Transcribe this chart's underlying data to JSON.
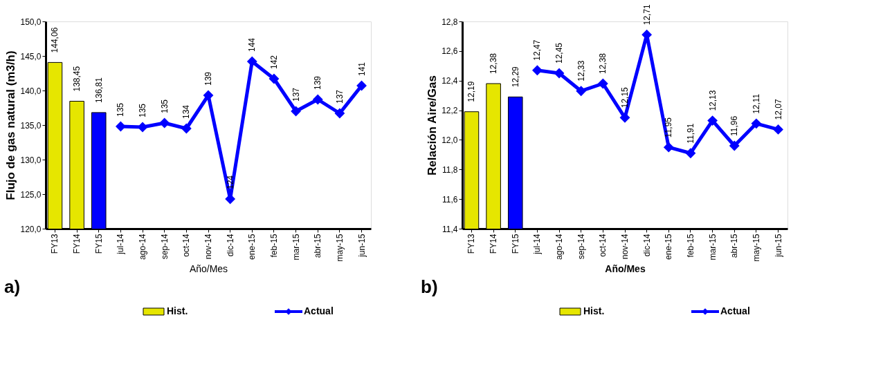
{
  "chart_data": [
    {
      "type": "bar",
      "categories": [
        "FY13",
        "FY14",
        "FY15",
        "jul-14",
        "ago-14",
        "sep-14",
        "oct-14",
        "nov-14",
        "dic-14",
        "ene-15",
        "feb-15",
        "mar-15",
        "abr-15",
        "may-15",
        "jun-15"
      ],
      "xlabel": "Año/Mes",
      "ylabel": "Flujo de gas natural (m3/h)",
      "annotations": [
        "a)"
      ],
      "ylim": [
        120,
        150
      ],
      "yticks": [
        {
          "value": 120,
          "label": "120,0"
        },
        {
          "value": 125,
          "label": "125,0"
        },
        {
          "value": 130,
          "label": "130,0"
        },
        {
          "value": 135,
          "label": "135,0"
        },
        {
          "value": 140,
          "label": "140,0"
        },
        {
          "value": 145,
          "label": "145,0"
        },
        {
          "value": 150,
          "label": "150,0"
        }
      ],
      "grid": false,
      "legend": "bottom",
      "marker": "diamond",
      "line_style": "solid",
      "series": [
        {
          "name": "Hist.",
          "color": "#e6e600",
          "colors": [
            "#e6e600",
            "#e6e600",
            "#0000ff",
            null,
            null,
            null,
            null,
            null,
            null,
            null,
            null,
            null,
            null,
            null,
            null
          ],
          "values": [
            144.06,
            138.45,
            136.81,
            null,
            null,
            null,
            null,
            null,
            null,
            null,
            null,
            null,
            null,
            null,
            null
          ],
          "value_labels": [
            "144,06",
            "138,45",
            "136,81",
            null,
            null,
            null,
            null,
            null,
            null,
            null,
            null,
            null,
            null,
            null,
            null
          ]
        },
        {
          "name": "Actual",
          "type": "line",
          "color": "#0000ff",
          "values": [
            null,
            null,
            null,
            134.8,
            134.7,
            135.3,
            134.5,
            139.3,
            124.3,
            144.2,
            141.7,
            137.0,
            138.7,
            136.7,
            140.7
          ],
          "value_labels": [
            null,
            null,
            null,
            "135",
            "135",
            "135",
            "134",
            "139",
            "124",
            "144",
            "142",
            "137",
            "139",
            "137",
            "141"
          ]
        }
      ]
    },
    {
      "type": "bar",
      "categories": [
        "FY13",
        "FY14",
        "FY15",
        "jul-14",
        "ago-14",
        "sep-14",
        "oct-14",
        "nov-14",
        "dic-14",
        "ene-15",
        "feb-15",
        "mar-15",
        "abr-15",
        "may-15",
        "jun-15"
      ],
      "xlabel": "Año/Mes",
      "ylabel": "Relación Aire/Gas",
      "annotations": [
        "b)"
      ],
      "ylim": [
        11.4,
        12.8
      ],
      "yticks": [
        {
          "value": 11.4,
          "label": "11,4"
        },
        {
          "value": 11.6,
          "label": "11,6"
        },
        {
          "value": 11.8,
          "label": "11,8"
        },
        {
          "value": 12.0,
          "label": "12,0"
        },
        {
          "value": 12.2,
          "label": "12,2"
        },
        {
          "value": 12.4,
          "label": "12,4"
        },
        {
          "value": 12.6,
          "label": "12,6"
        },
        {
          "value": 12.8,
          "label": "12,8"
        }
      ],
      "grid": false,
      "legend": "bottom",
      "marker": "diamond",
      "line_style": "solid",
      "series": [
        {
          "name": "Hist.",
          "color": "#e6e600",
          "colors": [
            "#e6e600",
            "#e6e600",
            "#0000ff",
            null,
            null,
            null,
            null,
            null,
            null,
            null,
            null,
            null,
            null,
            null,
            null
          ],
          "values": [
            12.19,
            12.38,
            12.29,
            null,
            null,
            null,
            null,
            null,
            null,
            null,
            null,
            null,
            null,
            null,
            null
          ],
          "value_labels": [
            "12,19",
            "12,38",
            "12,29",
            null,
            null,
            null,
            null,
            null,
            null,
            null,
            null,
            null,
            null,
            null,
            null
          ]
        },
        {
          "name": "Actual",
          "type": "line",
          "color": "#0000ff",
          "values": [
            null,
            null,
            null,
            12.47,
            12.45,
            12.33,
            12.38,
            12.15,
            12.71,
            11.95,
            11.91,
            12.13,
            11.96,
            12.11,
            12.07
          ],
          "value_labels": [
            null,
            null,
            null,
            "12,47",
            "12,45",
            "12,33",
            "12,38",
            "12,15",
            "12,71",
            "11,95",
            "11,91",
            "12,13",
            "11,96",
            "12,11",
            "12,07"
          ]
        }
      ]
    }
  ]
}
